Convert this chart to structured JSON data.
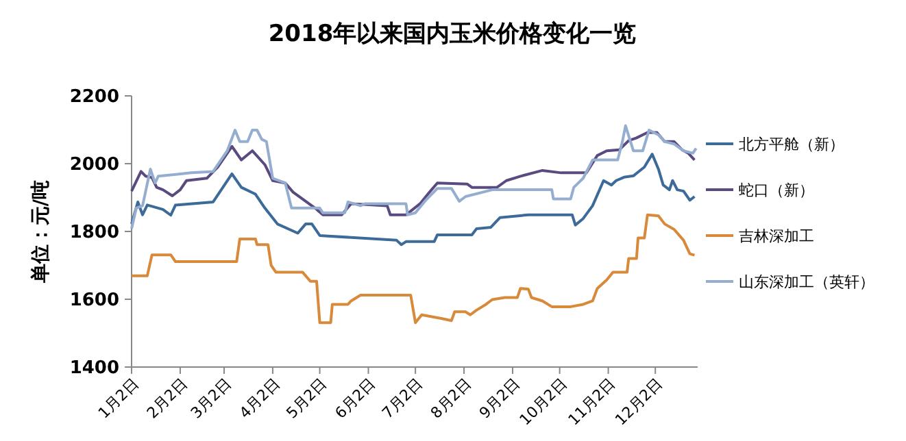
{
  "chart_data": {
    "type": "line",
    "title": "2018年以来国内玉米价格变化一览",
    "ylabel": "单位：元/吨",
    "xlim": [
      "--01-02",
      "--12-29"
    ],
    "ylim": [
      1400,
      2200
    ],
    "yticks": [
      1400,
      1600,
      1800,
      2000,
      2200
    ],
    "xticks": [
      {
        "value": "--01-02",
        "label": "1月2日"
      },
      {
        "value": "--02-02",
        "label": "2月2日"
      },
      {
        "value": "--03-02",
        "label": "3月2日"
      },
      {
        "value": "--04-02",
        "label": "4月2日"
      },
      {
        "value": "--05-02",
        "label": "5月2日"
      },
      {
        "value": "--06-02",
        "label": "6月2日"
      },
      {
        "value": "--07-02",
        "label": "7月2日"
      },
      {
        "value": "--08-02",
        "label": "8月2日"
      },
      {
        "value": "--09-02",
        "label": "9月2日"
      },
      {
        "value": "--10-02",
        "label": "10月2日"
      },
      {
        "value": "--11-02",
        "label": "11月2日"
      },
      {
        "value": "--12-02",
        "label": "12月2日"
      }
    ],
    "grid": false,
    "legend": "right",
    "marker": "none",
    "line_style": "solid",
    "series": [
      {
        "name": "北方平舱（新）",
        "color": "#3d6b99",
        "x": [
          "--01-02",
          "--01-06",
          "--01-09",
          "--01-12",
          "--01-22",
          "--01-27",
          "--01-30",
          "--02-23",
          "--03-07",
          "--03-13",
          "--03-22",
          "--03-28",
          "--04-05",
          "--04-18",
          "--04-23",
          "--04-27",
          "--05-02",
          "--06-20",
          "--06-23",
          "--06-26",
          "--07-14",
          "--07-16",
          "--08-07",
          "--08-10",
          "--08-19",
          "--08-25",
          "--09-12",
          "--10-10",
          "--10-12",
          "--10-17",
          "--10-23",
          "--10-30",
          "--11-04",
          "--11-07",
          "--11-12",
          "--11-18",
          "--11-25",
          "--11-30",
          "--12-04",
          "--12-07",
          "--12-11",
          "--12-13",
          "--12-16",
          "--12-20",
          "--12-24",
          "--12-27"
        ],
        "values": [
          1822,
          1887,
          1849,
          1878,
          1865,
          1848,
          1878,
          1887,
          1970,
          1930,
          1910,
          1869,
          1822,
          1795,
          1822,
          1822,
          1788,
          1774,
          1761,
          1770,
          1770,
          1790,
          1790,
          1808,
          1812,
          1841,
          1849,
          1849,
          1819,
          1838,
          1876,
          1950,
          1937,
          1950,
          1960,
          1964,
          1990,
          2028,
          1984,
          1937,
          1923,
          1950,
          1923,
          1919,
          1892,
          1903
        ]
      },
      {
        "name": "蛇口（新）",
        "color": "#5b4a80",
        "x": [
          "--01-02",
          "--01-08",
          "--01-11",
          "--01-15",
          "--01-18",
          "--01-22",
          "--01-28",
          "--02-02",
          "--02-06",
          "--02-19",
          "--02-26",
          "--03-07",
          "--03-13",
          "--03-20",
          "--03-28",
          "--04-02",
          "--04-10",
          "--04-15",
          "--04-23",
          "--04-29",
          "--05-04",
          "--05-16",
          "--05-22",
          "--06-14",
          "--06-16",
          "--06-26",
          "--07-05",
          "--07-11",
          "--07-16",
          "--08-04",
          "--08-07",
          "--08-23",
          "--08-29",
          "--09-07",
          "--09-21",
          "--10-03",
          "--10-19",
          "--10-26",
          "--11-01",
          "--11-09",
          "--11-15",
          "--11-20",
          "--11-27",
          "--12-03",
          "--12-08",
          "--12-14",
          "--12-19",
          "--12-23",
          "--12-27"
        ],
        "values": [
          1919,
          1977,
          1963,
          1959,
          1930,
          1923,
          1905,
          1923,
          1950,
          1957,
          1990,
          2051,
          2011,
          2038,
          1997,
          1950,
          1943,
          1916,
          1889,
          1869,
          1849,
          1849,
          1882,
          1876,
          1849,
          1849,
          1882,
          1916,
          1943,
          1940,
          1930,
          1930,
          1950,
          1963,
          1980,
          1973,
          1973,
          2024,
          2038,
          2041,
          2068,
          2076,
          2092,
          2092,
          2065,
          2065,
          2041,
          2031,
          2011
        ]
      },
      {
        "name": "吉林深加工",
        "color": "#d8893a",
        "x": [
          "--01-02",
          "--01-12",
          "--01-15",
          "--01-27",
          "--01-30",
          "--03-10",
          "--03-12",
          "--03-22",
          "--03-23",
          "--03-30",
          "--04-01",
          "--04-04",
          "--04-21",
          "--04-26",
          "--04-30",
          "--05-02",
          "--05-09",
          "--05-10",
          "--05-20",
          "--05-22",
          "--05-28",
          "--06-29",
          "--07-02",
          "--07-06",
          "--07-19",
          "--07-25",
          "--07-27",
          "--08-03",
          "--08-06",
          "--08-10",
          "--08-16",
          "--08-20",
          "--08-28",
          "--09-05",
          "--09-07",
          "--09-12",
          "--09-14",
          "--09-21",
          "--09-27",
          "--10-09",
          "--10-17",
          "--10-23",
          "--10-26",
          "--11-01",
          "--11-05",
          "--11-14",
          "--11-15",
          "--11-20",
          "--11-21",
          "--11-25",
          "--11-27",
          "--12-04",
          "--12-08",
          "--12-14",
          "--12-20",
          "--12-24",
          "--12-27"
        ],
        "values": [
          1669,
          1669,
          1731,
          1731,
          1711,
          1711,
          1778,
          1778,
          1761,
          1761,
          1700,
          1680,
          1680,
          1653,
          1653,
          1531,
          1531,
          1585,
          1585,
          1595,
          1612,
          1612,
          1531,
          1554,
          1543,
          1537,
          1563,
          1563,
          1554,
          1568,
          1585,
          1599,
          1605,
          1605,
          1632,
          1630,
          1605,
          1595,
          1578,
          1578,
          1585,
          1595,
          1632,
          1657,
          1680,
          1680,
          1720,
          1720,
          1781,
          1781,
          1849,
          1846,
          1822,
          1806,
          1774,
          1734,
          1730
        ]
      },
      {
        "name": "山东深加工（英轩）",
        "color": "#95aed0",
        "x": [
          "--01-02",
          "--01-05",
          "--01-09",
          "--01-14",
          "--01-17",
          "--01-19",
          "--02-09",
          "--02-23",
          "--03-04",
          "--03-09",
          "--03-12",
          "--03-17",
          "--03-20",
          "--03-23",
          "--03-26",
          "--03-29",
          "--04-02",
          "--04-10",
          "--04-14",
          "--05-02",
          "--05-04",
          "--05-18",
          "--05-20",
          "--05-28",
          "--05-31",
          "--06-26",
          "--06-27",
          "--07-02",
          "--07-08",
          "--07-16",
          "--07-25",
          "--07-30",
          "--08-03",
          "--08-20",
          "--09-27",
          "--09-28",
          "--10-09",
          "--10-11",
          "--10-17",
          "--10-23",
          "--11-08",
          "--11-11",
          "--11-13",
          "--11-18",
          "--11-24",
          "--11-28",
          "--12-04",
          "--12-08",
          "--12-14",
          "--12-20",
          "--12-26",
          "--12-28"
        ],
        "values": [
          1808,
          1869,
          1876,
          1984,
          1943,
          1963,
          1973,
          1977,
          2038,
          2099,
          2065,
          2065,
          2099,
          2099,
          2072,
          2065,
          1957,
          1943,
          1869,
          1869,
          1855,
          1855,
          1887,
          1876,
          1882,
          1882,
          1849,
          1855,
          1889,
          1927,
          1927,
          1889,
          1903,
          1923,
          1923,
          1896,
          1896,
          1930,
          1957,
          2011,
          2011,
          2065,
          2112,
          2038,
          2038,
          2099,
          2085,
          2065,
          2058,
          2038,
          2031,
          2045
        ]
      }
    ]
  }
}
